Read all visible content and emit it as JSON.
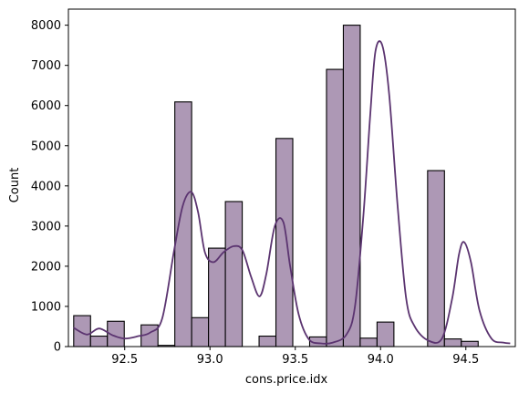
{
  "chart_data": {
    "type": "bar",
    "xlabel": "cons.price.idx",
    "ylabel": "Count",
    "xlim": [
      92.17,
      94.79
    ],
    "ylim": [
      0,
      8400
    ],
    "x_ticks": [
      92.5,
      93.0,
      93.5,
      94.0,
      94.5
    ],
    "x_tick_labels": [
      "92.5",
      "93.0",
      "93.5",
      "94.0",
      "94.5"
    ],
    "y_ticks": [
      0,
      1000,
      2000,
      3000,
      4000,
      5000,
      6000,
      7000,
      8000
    ],
    "y_tick_labels": [
      "0",
      "1000",
      "2000",
      "3000",
      "4000",
      "5000",
      "6000",
      "7000",
      "8000"
    ],
    "bin_start": 92.201,
    "bin_width": 0.0988,
    "counts": [
      770,
      260,
      630,
      0,
      540,
      30,
      6090,
      720,
      2450,
      3610,
      0,
      260,
      5180,
      0,
      240,
      6900,
      8000,
      210,
      610,
      0,
      0,
      4380,
      190,
      130
    ],
    "kde_x": [
      92.2,
      92.28,
      92.35,
      92.43,
      92.5,
      92.58,
      92.65,
      92.72,
      92.79,
      92.84,
      92.89,
      92.93,
      92.97,
      93.02,
      93.08,
      93.14,
      93.19,
      93.24,
      93.29,
      93.33,
      93.38,
      93.43,
      93.47,
      93.52,
      93.58,
      93.65,
      93.72,
      93.8,
      93.85,
      93.9,
      93.94,
      93.97,
      94.01,
      94.05,
      94.1,
      94.15,
      94.2,
      94.28,
      94.36,
      94.42,
      94.46,
      94.49,
      94.53,
      94.58,
      94.65,
      94.72,
      94.76
    ],
    "kde_y": [
      470,
      300,
      450,
      280,
      200,
      260,
      350,
      700,
      2400,
      3500,
      3850,
      3350,
      2350,
      2100,
      2350,
      2500,
      2400,
      1750,
      1250,
      1800,
      3000,
      3100,
      2000,
      800,
      180,
      80,
      100,
      300,
      1000,
      3300,
      5800,
      7350,
      7500,
      6300,
      3500,
      1200,
      500,
      150,
      200,
      1200,
      2300,
      2600,
      2100,
      900,
      200,
      100,
      80
    ],
    "bar_fill": "#ad98b5",
    "bar_edge": "#000000",
    "kde_color": "#5b3470",
    "grid": false,
    "legend": "none"
  }
}
